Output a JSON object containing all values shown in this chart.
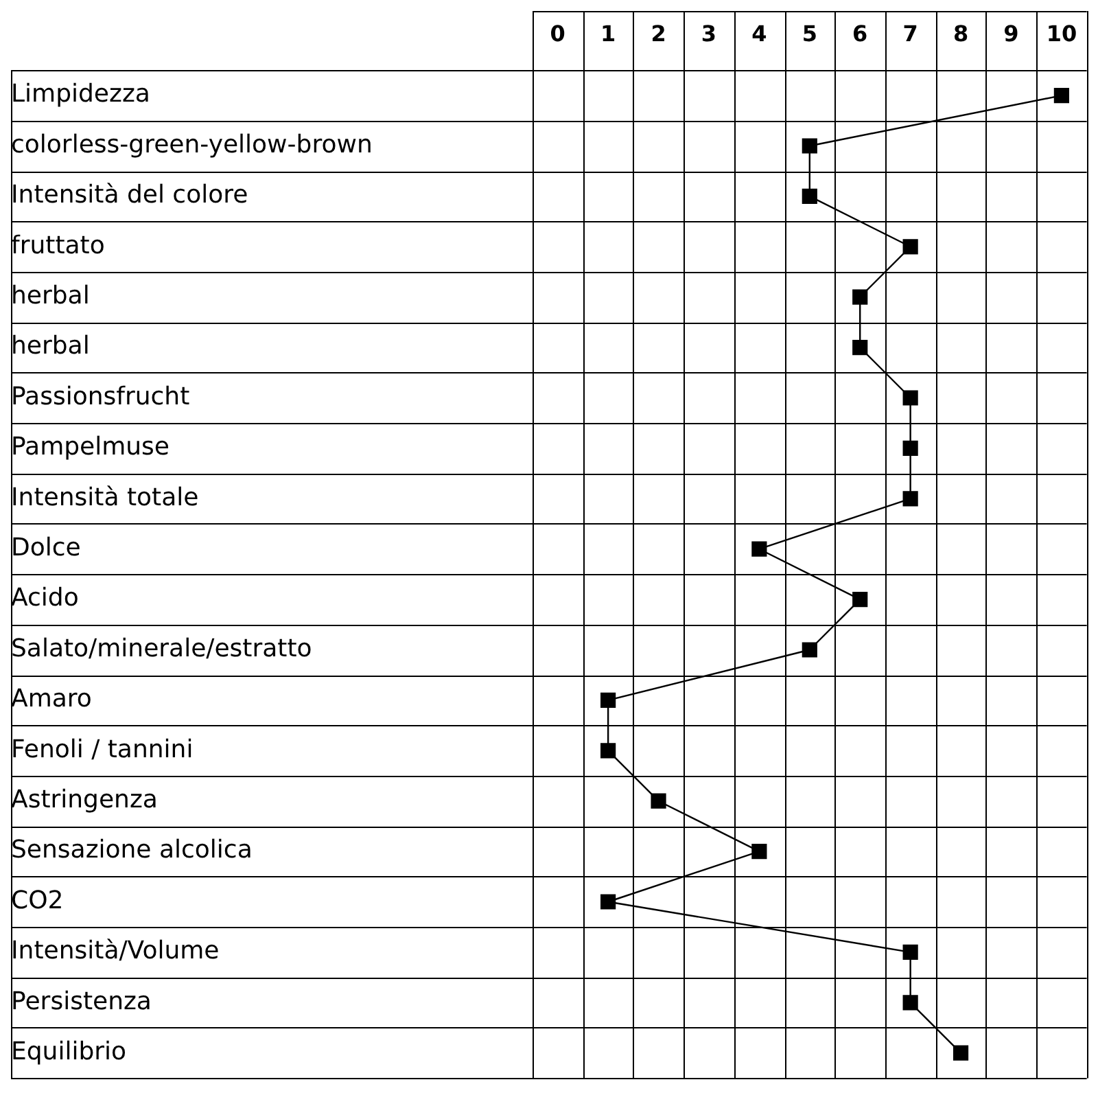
{
  "chart_data": {
    "type": "line",
    "orientation": "horizontal",
    "categories": [
      "Limpidezza",
      "colorless-green-yellow-brown",
      "Intensità del colore",
      "fruttato",
      "herbal",
      "herbal",
      "Passionsfrucht",
      "Pampelmuse",
      "Intensità totale",
      "Dolce",
      "Acido",
      "Salato/minerale/estratto",
      "Amaro",
      "Fenoli / tannini",
      "Astringenza",
      "Sensazione alcolica",
      "CO2",
      "Intensità/Volume",
      "Persistenza",
      "Equilibrio"
    ],
    "series": [
      {
        "color": "#000000",
        "values": [
          10,
          5,
          5,
          7,
          6,
          6,
          7,
          7,
          7,
          4,
          6,
          5,
          1,
          1,
          2,
          4,
          1,
          7,
          7,
          8
        ]
      }
    ],
    "xlim": [
      -0.5,
      10.5
    ],
    "xticks": [
      0,
      1,
      2,
      3,
      4,
      5,
      6,
      7,
      8,
      9,
      10
    ],
    "grid": true,
    "marker": "square",
    "line_style": "solid",
    "legend": false
  }
}
